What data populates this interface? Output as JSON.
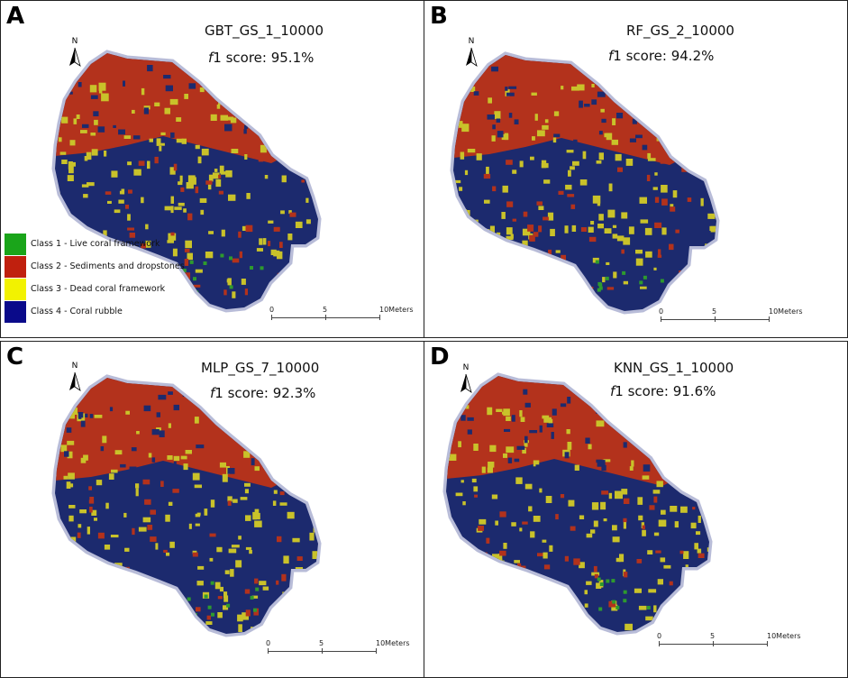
{
  "panels": [
    {
      "letter": "A",
      "title": "GBT_GS_1_10000",
      "score_prefix": "f",
      "score_text": "1 score: 95.1%"
    },
    {
      "letter": "B",
      "title": "RF_GS_2_10000",
      "score_prefix": "f",
      "score_text": "1 score: 94.2%"
    },
    {
      "letter": "C",
      "title": "MLP_GS_7_10000",
      "score_prefix": "f",
      "score_text": "1 score: 92.3%"
    },
    {
      "letter": "D",
      "title": "KNN_GS_1_10000",
      "score_prefix": "f",
      "score_text": "1 score: 91.6%"
    }
  ],
  "north_label": "N",
  "scale": {
    "t0": "0",
    "t1": "5",
    "t2": "10Meters"
  },
  "legend": [
    {
      "label": "Class 1 - Live coral framework",
      "color": "#1aa51a"
    },
    {
      "label": "Class 2 - Sediments and dropstones",
      "color": "#c0200e"
    },
    {
      "label": "Class 3 - Dead coral framework",
      "color": "#f2f200"
    },
    {
      "label": "Class 4 - Coral rubble",
      "color": "#0a0a8a"
    }
  ],
  "map_colors": {
    "sediment": "#b3321c",
    "rubble": "#1c2a6e",
    "dead": "#c9c22a",
    "live": "#2e9a2e",
    "halo": "#9aa0c8"
  }
}
